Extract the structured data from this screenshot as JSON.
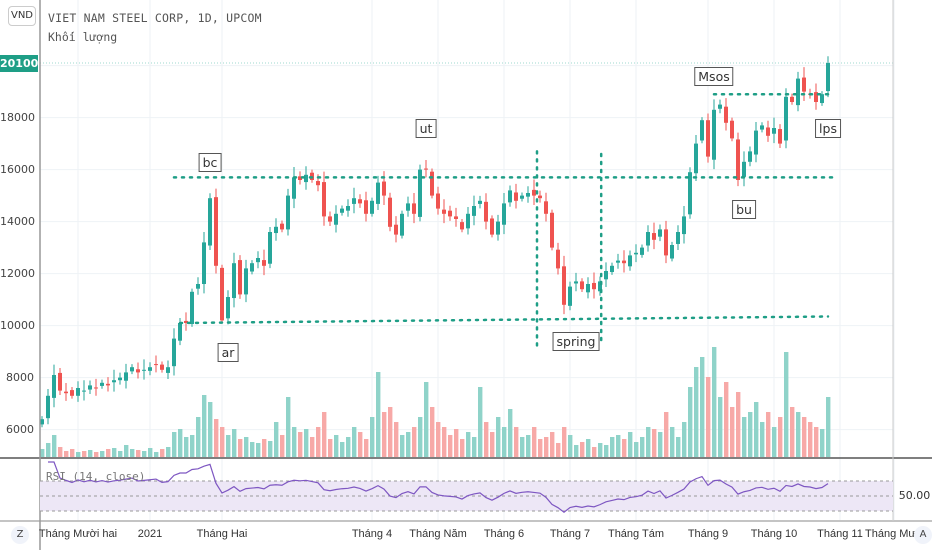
{
  "header": {
    "currency": "VND",
    "title": "VIET NAM STEEL CORP, 1D, UPCOM",
    "volume_label": "Khối lượng"
  },
  "colors": {
    "up": "#26a69a",
    "down": "#ef5350",
    "up_volume": "#8fd3c9",
    "down_volume": "#f7a9a7",
    "rsi_line": "#7e57c2",
    "rsi_band": "#ede7f6",
    "annotation_line": "#1e9e86",
    "grid": "#eef2f6"
  },
  "controls": {
    "left_corner": "Z",
    "right_corner": "A"
  },
  "chart_data": {
    "type": "candlestick",
    "title": "VIET NAM STEEL CORP, 1D, UPCOM",
    "y_axis": {
      "position": "left",
      "ticks": [
        6000,
        8000,
        10000,
        12000,
        14000,
        16000,
        18000
      ],
      "tick_labels": [
        "6000",
        "8000",
        "10000",
        "12000",
        "14000",
        "16000",
        "18000"
      ],
      "last_price": 20100,
      "last_price_label": "20100"
    },
    "x_axis": {
      "tick_labels": [
        "Tháng Mười hai",
        "2021",
        "Tháng Hai",
        "Tháng 4",
        "Tháng Năm",
        "Tháng 6",
        "Tháng 7",
        "Tháng Tám",
        "Tháng 9",
        "Tháng 10",
        "Tháng 11",
        "Tháng Mư"
      ],
      "tick_index": [
        6,
        18,
        30,
        55,
        66,
        77,
        88,
        99,
        111,
        122,
        133,
        142
      ]
    },
    "closes": [
      6400,
      7300,
      8100,
      7500,
      7400,
      7300,
      7600,
      7500,
      7700,
      7600,
      7800,
      7700,
      7900,
      8000,
      8200,
      8400,
      8200,
      8300,
      8400,
      8500,
      8300,
      8400,
      9500,
      10100,
      10100,
      11300,
      11600,
      13200,
      14900,
      12300,
      10200,
      11100,
      12400,
      11200,
      12200,
      12400,
      12600,
      12300,
      13600,
      13800,
      13700,
      15000,
      15700,
      15600,
      15800,
      15600,
      15400,
      14200,
      14000,
      14300,
      14500,
      14600,
      14900,
      14700,
      14300,
      14800,
      15500,
      15000,
      13800,
      13500,
      14300,
      14700,
      14300,
      16000,
      16000,
      15000,
      14500,
      14300,
      14200,
      14100,
      13700,
      14300,
      14600,
      14800,
      14000,
      13500,
      14000,
      14700,
      15200,
      14800,
      15000,
      15100,
      15000,
      14900,
      14300,
      13000,
      12200,
      10800,
      11500,
      11700,
      11400,
      11600,
      11400,
      11700,
      12100,
      12300,
      12500,
      12400,
      12700,
      12800,
      13000,
      13600,
      13300,
      13700,
      12700,
      13100,
      13600,
      14200,
      15900,
      17000,
      17900,
      16500,
      18300,
      18500,
      17800,
      17200,
      15600,
      16300,
      16700,
      17500,
      17700,
      17300,
      17600,
      17000,
      18800,
      18600,
      19500,
      19000,
      18900,
      18600,
      18900,
      20100
    ],
    "volumes": [
      8,
      14,
      22,
      10,
      6,
      8,
      5,
      6,
      7,
      5,
      6,
      8,
      9,
      6,
      12,
      8,
      7,
      6,
      9,
      5,
      8,
      10,
      25,
      28,
      20,
      22,
      40,
      62,
      55,
      38,
      30,
      22,
      28,
      18,
      20,
      15,
      14,
      18,
      16,
      35,
      22,
      60,
      30,
      25,
      28,
      20,
      30,
      45,
      18,
      22,
      15,
      20,
      30,
      25,
      18,
      40,
      85,
      45,
      50,
      35,
      22,
      25,
      30,
      40,
      75,
      50,
      35,
      30,
      22,
      28,
      18,
      25,
      20,
      70,
      35,
      25,
      40,
      30,
      48,
      30,
      20,
      22,
      30,
      18,
      20,
      25,
      14,
      30,
      22,
      12,
      15,
      18,
      10,
      14,
      12,
      20,
      22,
      18,
      25,
      15,
      20,
      30,
      28,
      25,
      45,
      30,
      20,
      35,
      70,
      90,
      100,
      80,
      110,
      60,
      75,
      50,
      65,
      40,
      45,
      55,
      35,
      45,
      30,
      40,
      105,
      50,
      45,
      40,
      35,
      30,
      28,
      60
    ],
    "indicator": {
      "name": "RSI",
      "label": "RSI (14, close)",
      "period": 14,
      "upper_band": 70,
      "middle": 50,
      "lower_band": 30,
      "middle_label": "50.00"
    },
    "annotations": {
      "labels": [
        {
          "text": "bc",
          "price": 16300,
          "index": 28
        },
        {
          "text": "ar",
          "price": 9000,
          "index": 31
        },
        {
          "text": "ut",
          "price": 17600,
          "index": 64
        },
        {
          "text": "spring",
          "price": 9400,
          "index": 89
        },
        {
          "text": "Msos",
          "price": 19600,
          "index": 112
        },
        {
          "text": "bu",
          "price": 14500,
          "index": 117
        },
        {
          "text": "lps",
          "price": 17600,
          "index": 131
        }
      ],
      "horizontal_lines": [
        {
          "name": "resistance",
          "price": 15700,
          "from_index": 22,
          "to_index": 132
        },
        {
          "name": "support",
          "price": 10100,
          "end_price": 10350,
          "from_index": 23,
          "to_index": 131
        },
        {
          "name": "msos-level",
          "price": 18900,
          "from_index": 112,
          "to_index": 132
        }
      ],
      "vertical_lines": [
        {
          "name": "phase-c-start",
          "index": 82.5,
          "from_price": 16700,
          "to_price": 9200
        },
        {
          "name": "phase-c-end",
          "index": 93.2,
          "from_price": 16600,
          "to_price": 9400
        }
      ]
    }
  }
}
